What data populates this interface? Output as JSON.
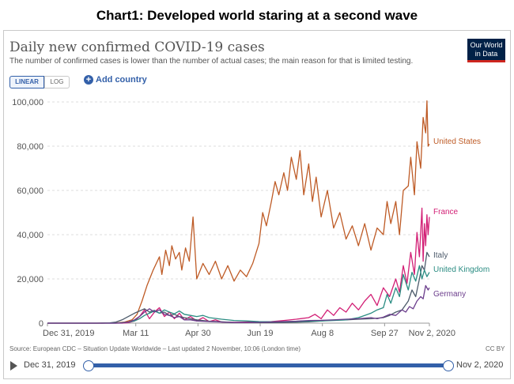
{
  "heading": "Chart1: Developed world staring at a second wave",
  "logo": {
    "line1": "Our World",
    "line2": "in Data"
  },
  "controls": {
    "linear": "LINEAR",
    "log": "LOG",
    "add_country": "Add country"
  },
  "timeline": {
    "start": "Dec 31, 2019",
    "end": "Nov 2, 2020"
  },
  "chart_data": {
    "type": "line",
    "title": "Daily new confirmed COVID-19 cases",
    "subtitle": "The number of confirmed cases is lower than the number of actual cases; the main reason for that is limited testing.",
    "source": "Source: European CDC – Situation Update Worldwide – Last updated 2 November, 10:06 (London time)",
    "license": "CC BY",
    "xlabel": "",
    "ylabel": "",
    "x_tick_labels": [
      "Dec 31, 2019",
      "Mar 11",
      "Apr 30",
      "Jun 19",
      "Aug 8",
      "Sep 27",
      "Nov 2, 2020"
    ],
    "x_tick_days": [
      0,
      71,
      121,
      171,
      221,
      271,
      307
    ],
    "y_tick_labels": [
      "0",
      "20,000",
      "40,000",
      "60,000",
      "80,000",
      "100,000"
    ],
    "ylim": [
      0,
      100000
    ],
    "xlim_days": [
      0,
      307
    ],
    "grid": "horizontal dashed",
    "legend": "inline labels at line ends",
    "series": [
      {
        "name": "United States",
        "color": "#be5b26",
        "days": [
          0,
          40,
          55,
          62,
          68,
          72,
          76,
          80,
          85,
          90,
          92,
          95,
          98,
          100,
          103,
          106,
          108,
          111,
          114,
          117,
          120,
          125,
          130,
          135,
          140,
          145,
          150,
          155,
          160,
          165,
          170,
          173,
          176,
          180,
          183,
          186,
          190,
          193,
          196,
          200,
          203,
          206,
          210,
          213,
          216,
          220,
          225,
          230,
          235,
          240,
          245,
          250,
          255,
          260,
          265,
          270,
          273,
          276,
          280,
          283,
          286,
          290,
          292,
          295,
          297,
          300,
          302,
          304,
          305,
          306,
          307
        ],
        "values": [
          0,
          0,
          100,
          500,
          1500,
          4000,
          10000,
          17000,
          24000,
          30000,
          22000,
          33000,
          26000,
          35000,
          29000,
          32000,
          24000,
          34000,
          28000,
          48000,
          20000,
          27000,
          22000,
          28000,
          20000,
          26000,
          19000,
          24000,
          21000,
          27000,
          36000,
          50000,
          44000,
          55000,
          64000,
          58000,
          68000,
          60000,
          75000,
          65000,
          78000,
          58000,
          72000,
          55000,
          66000,
          48000,
          60000,
          43000,
          50000,
          38000,
          44000,
          35000,
          45000,
          33000,
          43000,
          40000,
          55000,
          45000,
          55000,
          40000,
          60000,
          62000,
          75000,
          58000,
          82000,
          70000,
          93000,
          86000,
          100500,
          80000,
          81000
        ]
      },
      {
        "name": "France",
        "color": "#d21f75",
        "days": [
          0,
          50,
          60,
          65,
          70,
          74,
          78,
          82,
          86,
          90,
          94,
          98,
          102,
          106,
          110,
          115,
          120,
          125,
          130,
          135,
          140,
          150,
          160,
          170,
          180,
          190,
          200,
          210,
          215,
          220,
          225,
          230,
          235,
          240,
          245,
          250,
          255,
          260,
          265,
          270,
          275,
          280,
          283,
          286,
          289,
          292,
          295,
          297,
          299,
          301,
          302,
          303,
          304,
          305,
          306,
          307
        ],
        "values": [
          0,
          0,
          0,
          200,
          1000,
          3000,
          6000,
          2000,
          5000,
          7000,
          3000,
          5000,
          2000,
          4500,
          1500,
          3000,
          1000,
          2500,
          700,
          1500,
          500,
          400,
          500,
          600,
          700,
          1200,
          1800,
          2500,
          4000,
          2000,
          6000,
          3500,
          7000,
          5000,
          9000,
          6000,
          10000,
          13000,
          8000,
          16000,
          12000,
          20000,
          14000,
          26000,
          18000,
          32000,
          22000,
          41000,
          30000,
          52000,
          28000,
          45000,
          35000,
          49000,
          40000,
          48000
        ]
      },
      {
        "name": "Italy",
        "color": "#4d5b6b",
        "days": [
          0,
          40,
          50,
          55,
          60,
          65,
          70,
          74,
          78,
          82,
          86,
          90,
          94,
          98,
          102,
          106,
          110,
          115,
          120,
          130,
          140,
          150,
          160,
          170,
          180,
          190,
          200,
          210,
          220,
          230,
          240,
          250,
          260,
          270,
          275,
          280,
          285,
          290,
          293,
          296,
          299,
          301,
          303,
          305,
          307
        ],
        "values": [
          0,
          0,
          100,
          500,
          1500,
          3000,
          4500,
          5500,
          6500,
          5000,
          5800,
          4500,
          5000,
          3500,
          4000,
          3000,
          2500,
          2000,
          1500,
          900,
          600,
          300,
          250,
          200,
          250,
          300,
          400,
          600,
          1000,
          1400,
          1500,
          1800,
          2000,
          2500,
          3500,
          5000,
          6000,
          10000,
          15000,
          12000,
          20000,
          26000,
          24000,
          32000,
          30000
        ]
      },
      {
        "name": "United Kingdom",
        "color": "#2a8c82",
        "days": [
          0,
          55,
          60,
          65,
          70,
          74,
          78,
          82,
          86,
          90,
          94,
          98,
          102,
          106,
          110,
          115,
          120,
          125,
          130,
          140,
          150,
          160,
          170,
          180,
          190,
          200,
          210,
          220,
          230,
          240,
          250,
          255,
          260,
          265,
          270,
          273,
          276,
          280,
          283,
          286,
          290,
          293,
          296,
          299,
          301,
          303,
          305,
          307
        ],
        "values": [
          0,
          0,
          200,
          500,
          1000,
          2000,
          3500,
          4500,
          5500,
          4500,
          6000,
          5000,
          4200,
          5500,
          4000,
          3500,
          3000,
          3500,
          2500,
          1800,
          1200,
          1000,
          700,
          600,
          700,
          800,
          900,
          1000,
          1200,
          1500,
          2500,
          3500,
          4500,
          6000,
          7000,
          13000,
          9000,
          16000,
          12000,
          22000,
          15000,
          23000,
          19000,
          26000,
          20000,
          24000,
          21000,
          23000
        ]
      },
      {
        "name": "Germany",
        "color": "#6b3d8c",
        "days": [
          0,
          55,
          60,
          65,
          70,
          74,
          78,
          82,
          86,
          90,
          94,
          98,
          102,
          106,
          110,
          115,
          120,
          130,
          140,
          150,
          160,
          170,
          180,
          190,
          200,
          210,
          220,
          230,
          240,
          250,
          260,
          265,
          270,
          275,
          280,
          285,
          288,
          291,
          294,
          297,
          300,
          302,
          304,
          306,
          307
        ],
        "values": [
          0,
          0,
          100,
          500,
          1500,
          3000,
          5000,
          6500,
          5000,
          6000,
          4000,
          3500,
          2500,
          3000,
          1500,
          1500,
          1000,
          700,
          500,
          300,
          300,
          400,
          500,
          700,
          900,
          1200,
          1300,
          1500,
          1800,
          2000,
          2500,
          2000,
          2700,
          4000,
          3500,
          6000,
          5000,
          7500,
          6500,
          10000,
          12000,
          11000,
          17000,
          15000,
          16000
        ]
      }
    ]
  }
}
